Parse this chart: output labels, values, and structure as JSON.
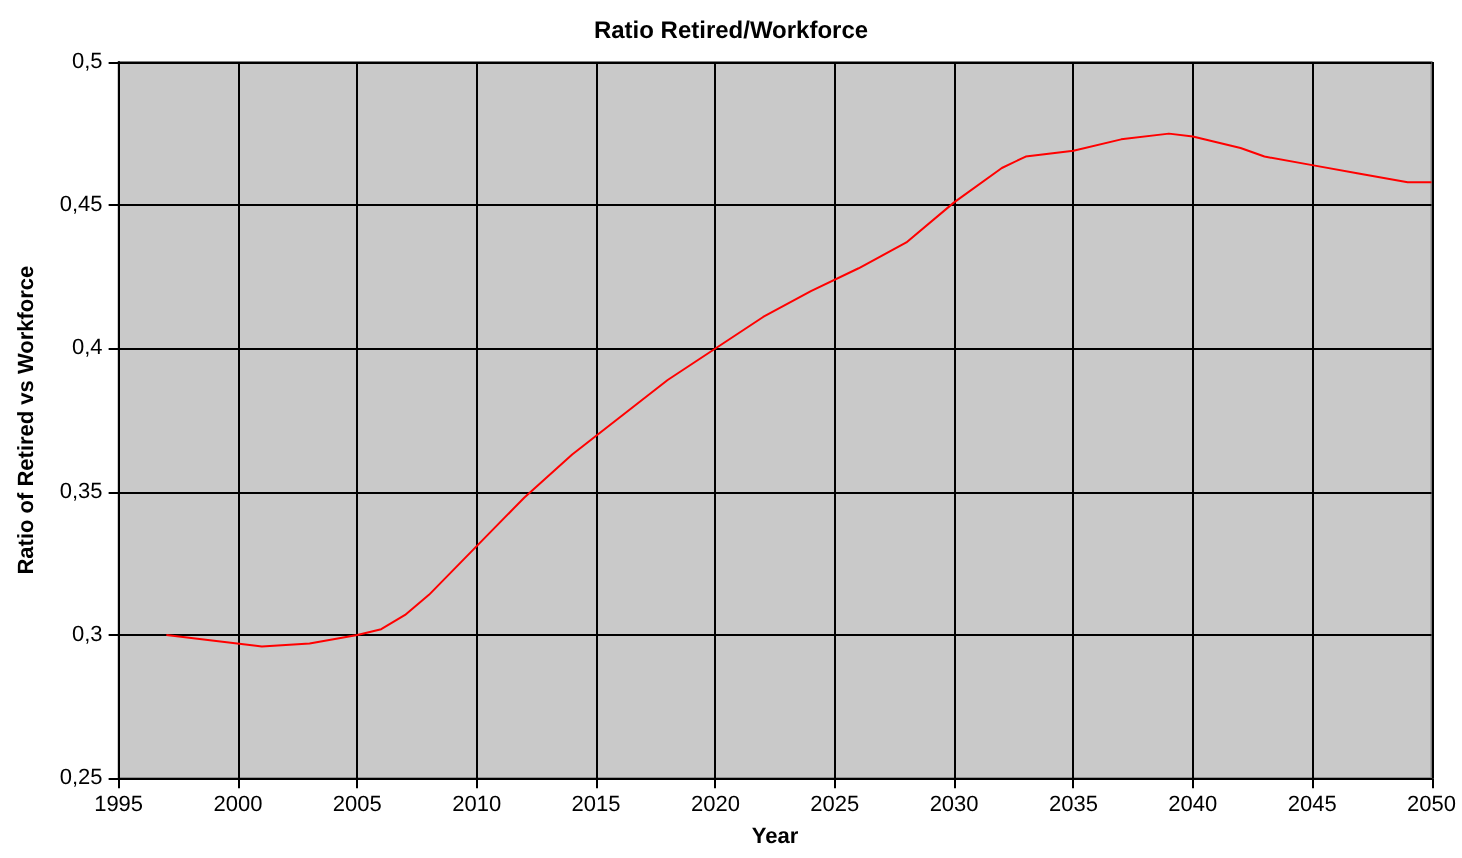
{
  "chart_data": {
    "type": "line",
    "title": "Ratio Retired/Workforce",
    "xlabel": "Year",
    "ylabel": "Ratio of Retired vs Workforce",
    "x": [
      1997,
      1999,
      2001,
      2003,
      2005,
      2006,
      2007,
      2008,
      2010,
      2012,
      2014,
      2016,
      2018,
      2020,
      2022,
      2024,
      2026,
      2028,
      2030,
      2032,
      2033,
      2035,
      2037,
      2039,
      2040,
      2042,
      2043,
      2045,
      2047,
      2049,
      2050
    ],
    "series": [
      {
        "color": "#ff0000",
        "values": [
          0.3,
          0.298,
          0.296,
          0.297,
          0.3,
          0.302,
          0.307,
          0.314,
          0.331,
          0.348,
          0.363,
          0.376,
          0.389,
          0.4,
          0.411,
          0.42,
          0.428,
          0.437,
          0.451,
          0.463,
          0.467,
          0.469,
          0.473,
          0.475,
          0.474,
          0.47,
          0.467,
          0.464,
          0.461,
          0.458,
          0.458
        ]
      }
    ],
    "xlim": [
      1995,
      2050
    ],
    "xticks": [
      1995,
      2000,
      2005,
      2010,
      2015,
      2020,
      2025,
      2030,
      2035,
      2040,
      2045,
      2050
    ],
    "ylim": [
      0.25,
      0.5
    ],
    "yticks": [
      {
        "value": 0.25,
        "label": "0,25"
      },
      {
        "value": 0.3,
        "label": "0,3"
      },
      {
        "value": 0.35,
        "label": "0,35"
      },
      {
        "value": 0.4,
        "label": "0,4"
      },
      {
        "value": 0.45,
        "label": "0,45"
      },
      {
        "value": 0.5,
        "label": "0,5"
      }
    ],
    "grid": true,
    "marker": "none",
    "line_style": "solid"
  }
}
